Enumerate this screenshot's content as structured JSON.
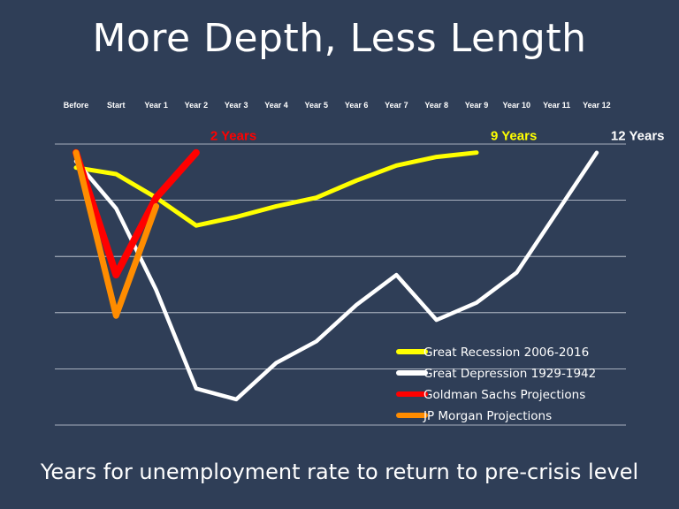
{
  "slide": {
    "title": "More Depth, Less Length",
    "footer": "Years for unemployment rate to return to pre-crisis level"
  },
  "chart_data": {
    "type": "line",
    "title": "More Depth, Less Length",
    "xlabel": "",
    "ylabel": "",
    "x_labels": [
      "Before",
      "Start",
      "Year 1",
      "Year 2",
      "Year 3",
      "Year 4",
      "Year 5",
      "Year 6",
      "Year 7",
      "Year 8",
      "Year 9",
      "Year 10",
      "Year 11",
      "Year 12"
    ],
    "x_axis_position": "top",
    "y_tick_labels_shown": false,
    "grid": true,
    "gridline_count": 6,
    "legend_position": "bottom-right",
    "series": [
      {
        "name": "Great Recession 2006-2016",
        "color": "#ffff00",
        "values": [
          100,
          99.7,
          98.6,
          97.3,
          97.7,
          98.2,
          98.6,
          99.4,
          100.1,
          100.5,
          100.7
        ],
        "end_label": "9 Years",
        "end_label_color": "#ffff00"
      },
      {
        "name": "Great Depression 1929-1942",
        "color": "#ffffff",
        "values": [
          100.3,
          98.1,
          94.3,
          89.7,
          89.2,
          90.9,
          91.9,
          93.6,
          95.0,
          92.9,
          93.7,
          95.1,
          97.9,
          100.7
        ],
        "end_label": "12 Years",
        "end_label_color": "#ffffff"
      },
      {
        "name": "Goldman Sachs  Projections",
        "color": "#ff0000",
        "values": [
          100.7,
          95.0,
          98.6,
          100.7
        ],
        "end_label": "2 Years",
        "end_label_color": "#ff0000"
      },
      {
        "name": "JP Morgan Projections",
        "color": "#ff8c00",
        "values": [
          100.7,
          93.1,
          98.2
        ],
        "end_label": "",
        "end_label_color": "#ff8c00"
      }
    ],
    "ylim": [
      88,
      101.1
    ]
  }
}
